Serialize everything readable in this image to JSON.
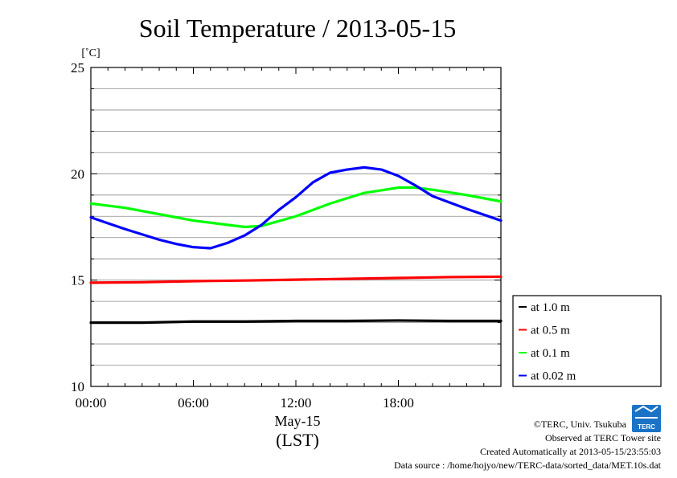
{
  "chart_data": {
    "type": "line",
    "title": "Soil Temperature / 2013-05-15",
    "ylabel": "[˚C]",
    "ylim": [
      10,
      25
    ],
    "yticks": [
      "10",
      "15",
      "20",
      "25"
    ],
    "xlim": [
      0,
      24
    ],
    "xticks": [
      "00:00",
      "06:00",
      "12:00",
      "18:00"
    ],
    "xlabel_date": "May-15",
    "xlabel_zone": "(LST)",
    "grid": true,
    "legend_position": "bottom-right, outside plot",
    "series": [
      {
        "name": "at 1.0 m",
        "color": "#000000",
        "x": [
          0,
          3,
          6,
          9,
          12,
          15,
          18,
          21,
          24
        ],
        "y": [
          13.0,
          13.0,
          13.05,
          13.05,
          13.08,
          13.08,
          13.1,
          13.08,
          13.08
        ]
      },
      {
        "name": "at 0.5 m",
        "color": "#ff0000",
        "x": [
          0,
          3,
          6,
          9,
          12,
          15,
          18,
          21,
          24
        ],
        "y": [
          14.88,
          14.9,
          14.95,
          14.98,
          15.02,
          15.06,
          15.1,
          15.14,
          15.16
        ]
      },
      {
        "name": "at 0.1 m",
        "color": "#00ff00",
        "x": [
          0,
          2,
          4,
          6,
          8,
          9,
          10,
          12,
          14,
          16,
          18,
          19,
          20,
          22,
          24
        ],
        "y": [
          18.6,
          18.4,
          18.1,
          17.8,
          17.6,
          17.5,
          17.55,
          18.0,
          18.6,
          19.1,
          19.35,
          19.35,
          19.25,
          19.0,
          18.7
        ]
      },
      {
        "name": "at 0.02 m",
        "color": "#0000ff",
        "x": [
          0,
          2,
          4,
          5,
          6,
          7,
          8,
          9,
          10,
          11,
          12,
          13,
          14,
          15,
          16,
          17,
          18,
          19,
          20,
          22,
          24
        ],
        "y": [
          17.95,
          17.4,
          16.9,
          16.7,
          16.55,
          16.5,
          16.75,
          17.1,
          17.6,
          18.3,
          18.9,
          19.6,
          20.05,
          20.2,
          20.3,
          20.2,
          19.9,
          19.45,
          18.95,
          18.35,
          17.8
        ]
      }
    ]
  },
  "credits": {
    "copyright": "©TERC, Univ. Tsukuba",
    "observed": "Observed at TERC Tower site",
    "created": "Created Automatically at 2013-05-15/23:55:03",
    "source": "Data source : /home/hojyo/new/TERC-data/sorted_data/MET.10s.dat",
    "logo_text": "TERC",
    "logo_color": "#1a73c6"
  }
}
